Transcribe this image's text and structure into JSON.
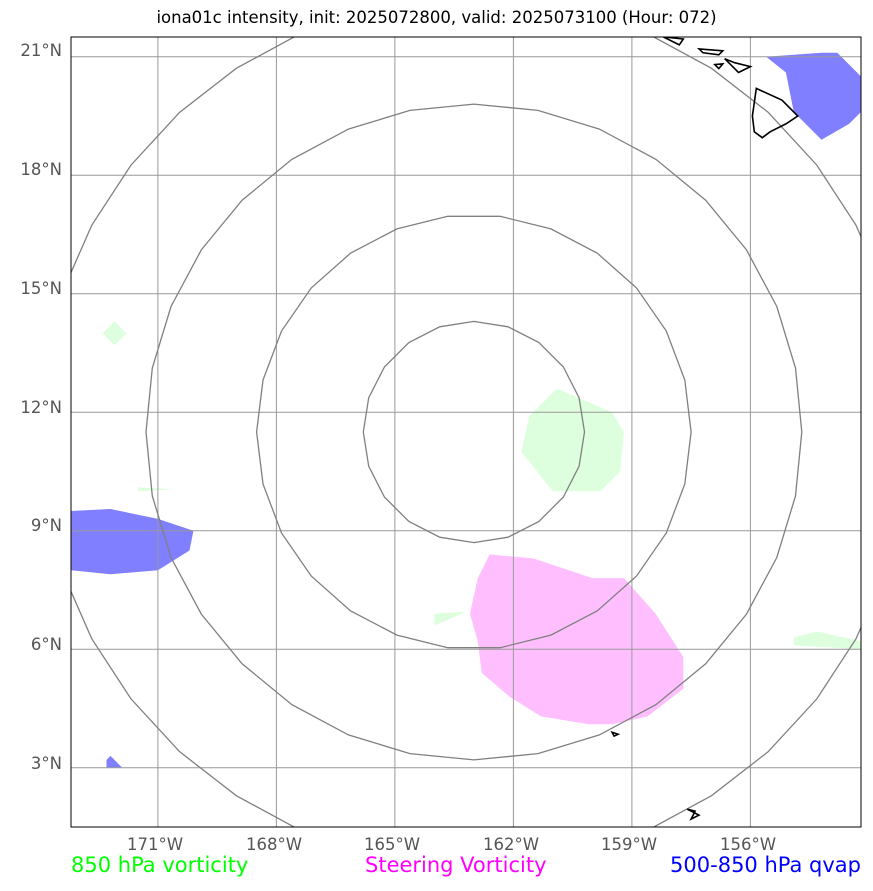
{
  "title": "iona01c intensity, init: 2025072800, valid: 2025073100 (Hour: 072)",
  "lat_labels": [
    "21°N",
    "18°N",
    "15°N",
    "12°N",
    "9°N",
    "6°N",
    "3°N"
  ],
  "lon_labels": [
    "171°W",
    "168°W",
    "165°W",
    "162°W",
    "159°W",
    "156°W"
  ],
  "map": {
    "lat_range": [
      1.5,
      21.5
    ],
    "lon_range": [
      -173.2,
      -153.2
    ],
    "lat_ticks": [
      21,
      18,
      15,
      12,
      9,
      6,
      3
    ],
    "lon_ticks": [
      -171,
      -168,
      -165,
      -162,
      -159,
      -156
    ],
    "center": {
      "lon": -163.0,
      "lat": 11.5
    },
    "range_ring_radii_deg": [
      2.8,
      5.5,
      8.3,
      11.0
    ],
    "gridline_color": "#999999",
    "ring_color": "#808080"
  },
  "layers": {
    "vort850": {
      "color": "#ddffdd",
      "polygons": [
        [
          [
            -160.9,
            12.6
          ],
          [
            -159.5,
            12.0
          ],
          [
            -159.2,
            11.5
          ],
          [
            -159.3,
            10.5
          ],
          [
            -159.8,
            10.0
          ],
          [
            -161.0,
            10.0
          ],
          [
            -161.8,
            11.0
          ],
          [
            -161.6,
            11.9
          ]
        ],
        [
          [
            -172.4,
            14.0
          ],
          [
            -172.1,
            14.3
          ],
          [
            -171.8,
            14.0
          ],
          [
            -172.1,
            13.7
          ]
        ],
        [
          [
            -171.5,
            10.0
          ],
          [
            -170.6,
            10.05
          ],
          [
            -171.5,
            10.1
          ]
        ],
        [
          [
            -164.0,
            6.9
          ],
          [
            -163.2,
            6.95
          ],
          [
            -164.0,
            6.6
          ]
        ],
        [
          [
            -154.9,
            6.3
          ],
          [
            -154.3,
            6.45
          ],
          [
            -153.2,
            6.2
          ],
          [
            -153.2,
            6.0
          ],
          [
            -154.9,
            6.1
          ]
        ]
      ]
    },
    "steering_vort": {
      "color": "#ffbfff",
      "polygons": [
        [
          [
            -162.6,
            8.4
          ],
          [
            -161.5,
            8.3
          ],
          [
            -160.0,
            7.8
          ],
          [
            -159.2,
            7.8
          ],
          [
            -158.4,
            6.9
          ],
          [
            -157.7,
            5.8
          ],
          [
            -157.7,
            5.0
          ],
          [
            -158.6,
            4.3
          ],
          [
            -159.5,
            4.1
          ],
          [
            -160.1,
            4.1
          ],
          [
            -161.3,
            4.3
          ],
          [
            -162.1,
            4.8
          ],
          [
            -162.8,
            5.4
          ],
          [
            -162.9,
            6.2
          ],
          [
            -163.1,
            6.9
          ],
          [
            -162.9,
            7.8
          ]
        ]
      ]
    },
    "qvap": {
      "color": "#7f7fff",
      "polygons": [
        [
          [
            -173.2,
            9.5
          ],
          [
            -172.2,
            9.55
          ],
          [
            -171.0,
            9.3
          ],
          [
            -170.1,
            9.0
          ],
          [
            -170.2,
            8.5
          ],
          [
            -171.0,
            8.0
          ],
          [
            -172.2,
            7.9
          ],
          [
            -173.2,
            8.0
          ]
        ],
        [
          [
            -155.6,
            21.0
          ],
          [
            -154.2,
            21.1
          ],
          [
            -153.8,
            21.1
          ],
          [
            -153.2,
            20.5
          ],
          [
            -153.2,
            19.6
          ],
          [
            -153.5,
            19.3
          ],
          [
            -154.2,
            18.9
          ],
          [
            -154.9,
            19.6
          ],
          [
            -155.1,
            20.6
          ]
        ],
        [
          [
            -172.3,
            3.2
          ],
          [
            -172.2,
            3.3
          ],
          [
            -171.9,
            3.0
          ],
          [
            -172.3,
            3.0
          ]
        ]
      ]
    }
  },
  "coastlines": [
    [
      [
        -155.85,
        20.2
      ],
      [
        -155.2,
        19.9
      ],
      [
        -154.8,
        19.5
      ],
      [
        -155.1,
        19.3
      ],
      [
        -155.5,
        19.1
      ],
      [
        -155.7,
        18.95
      ],
      [
        -155.9,
        19.1
      ],
      [
        -155.95,
        19.5
      ],
      [
        -155.85,
        20.2
      ]
    ],
    [
      [
        -156.65,
        20.95
      ],
      [
        -156.4,
        20.85
      ],
      [
        -156.0,
        20.75
      ],
      [
        -156.3,
        20.6
      ],
      [
        -156.5,
        20.8
      ],
      [
        -156.65,
        20.95
      ]
    ],
    [
      [
        -157.3,
        21.2
      ],
      [
        -156.7,
        21.15
      ],
      [
        -156.8,
        21.05
      ],
      [
        -157.2,
        21.1
      ]
    ],
    [
      [
        -156.9,
        20.8
      ],
      [
        -156.7,
        20.82
      ],
      [
        -156.8,
        20.7
      ]
    ],
    [
      [
        -158.2,
        21.5
      ],
      [
        -157.7,
        21.45
      ],
      [
        -157.8,
        21.3
      ]
    ],
    [
      [
        -159.5,
        3.9
      ],
      [
        -159.35,
        3.85
      ],
      [
        -159.45,
        3.8
      ]
    ],
    [
      [
        -157.6,
        1.95
      ],
      [
        -157.3,
        1.8
      ],
      [
        -157.5,
        1.7
      ],
      [
        -157.4,
        1.9
      ]
    ]
  ],
  "coastline_color": "#000000",
  "legend": [
    {
      "label": "850 hPa vorticity",
      "color": "#00ff00"
    },
    {
      "label": "Steering Vorticity",
      "color": "#ff00ff"
    },
    {
      "label": "500-850 hPa qvap",
      "color": "#0000ff"
    }
  ]
}
